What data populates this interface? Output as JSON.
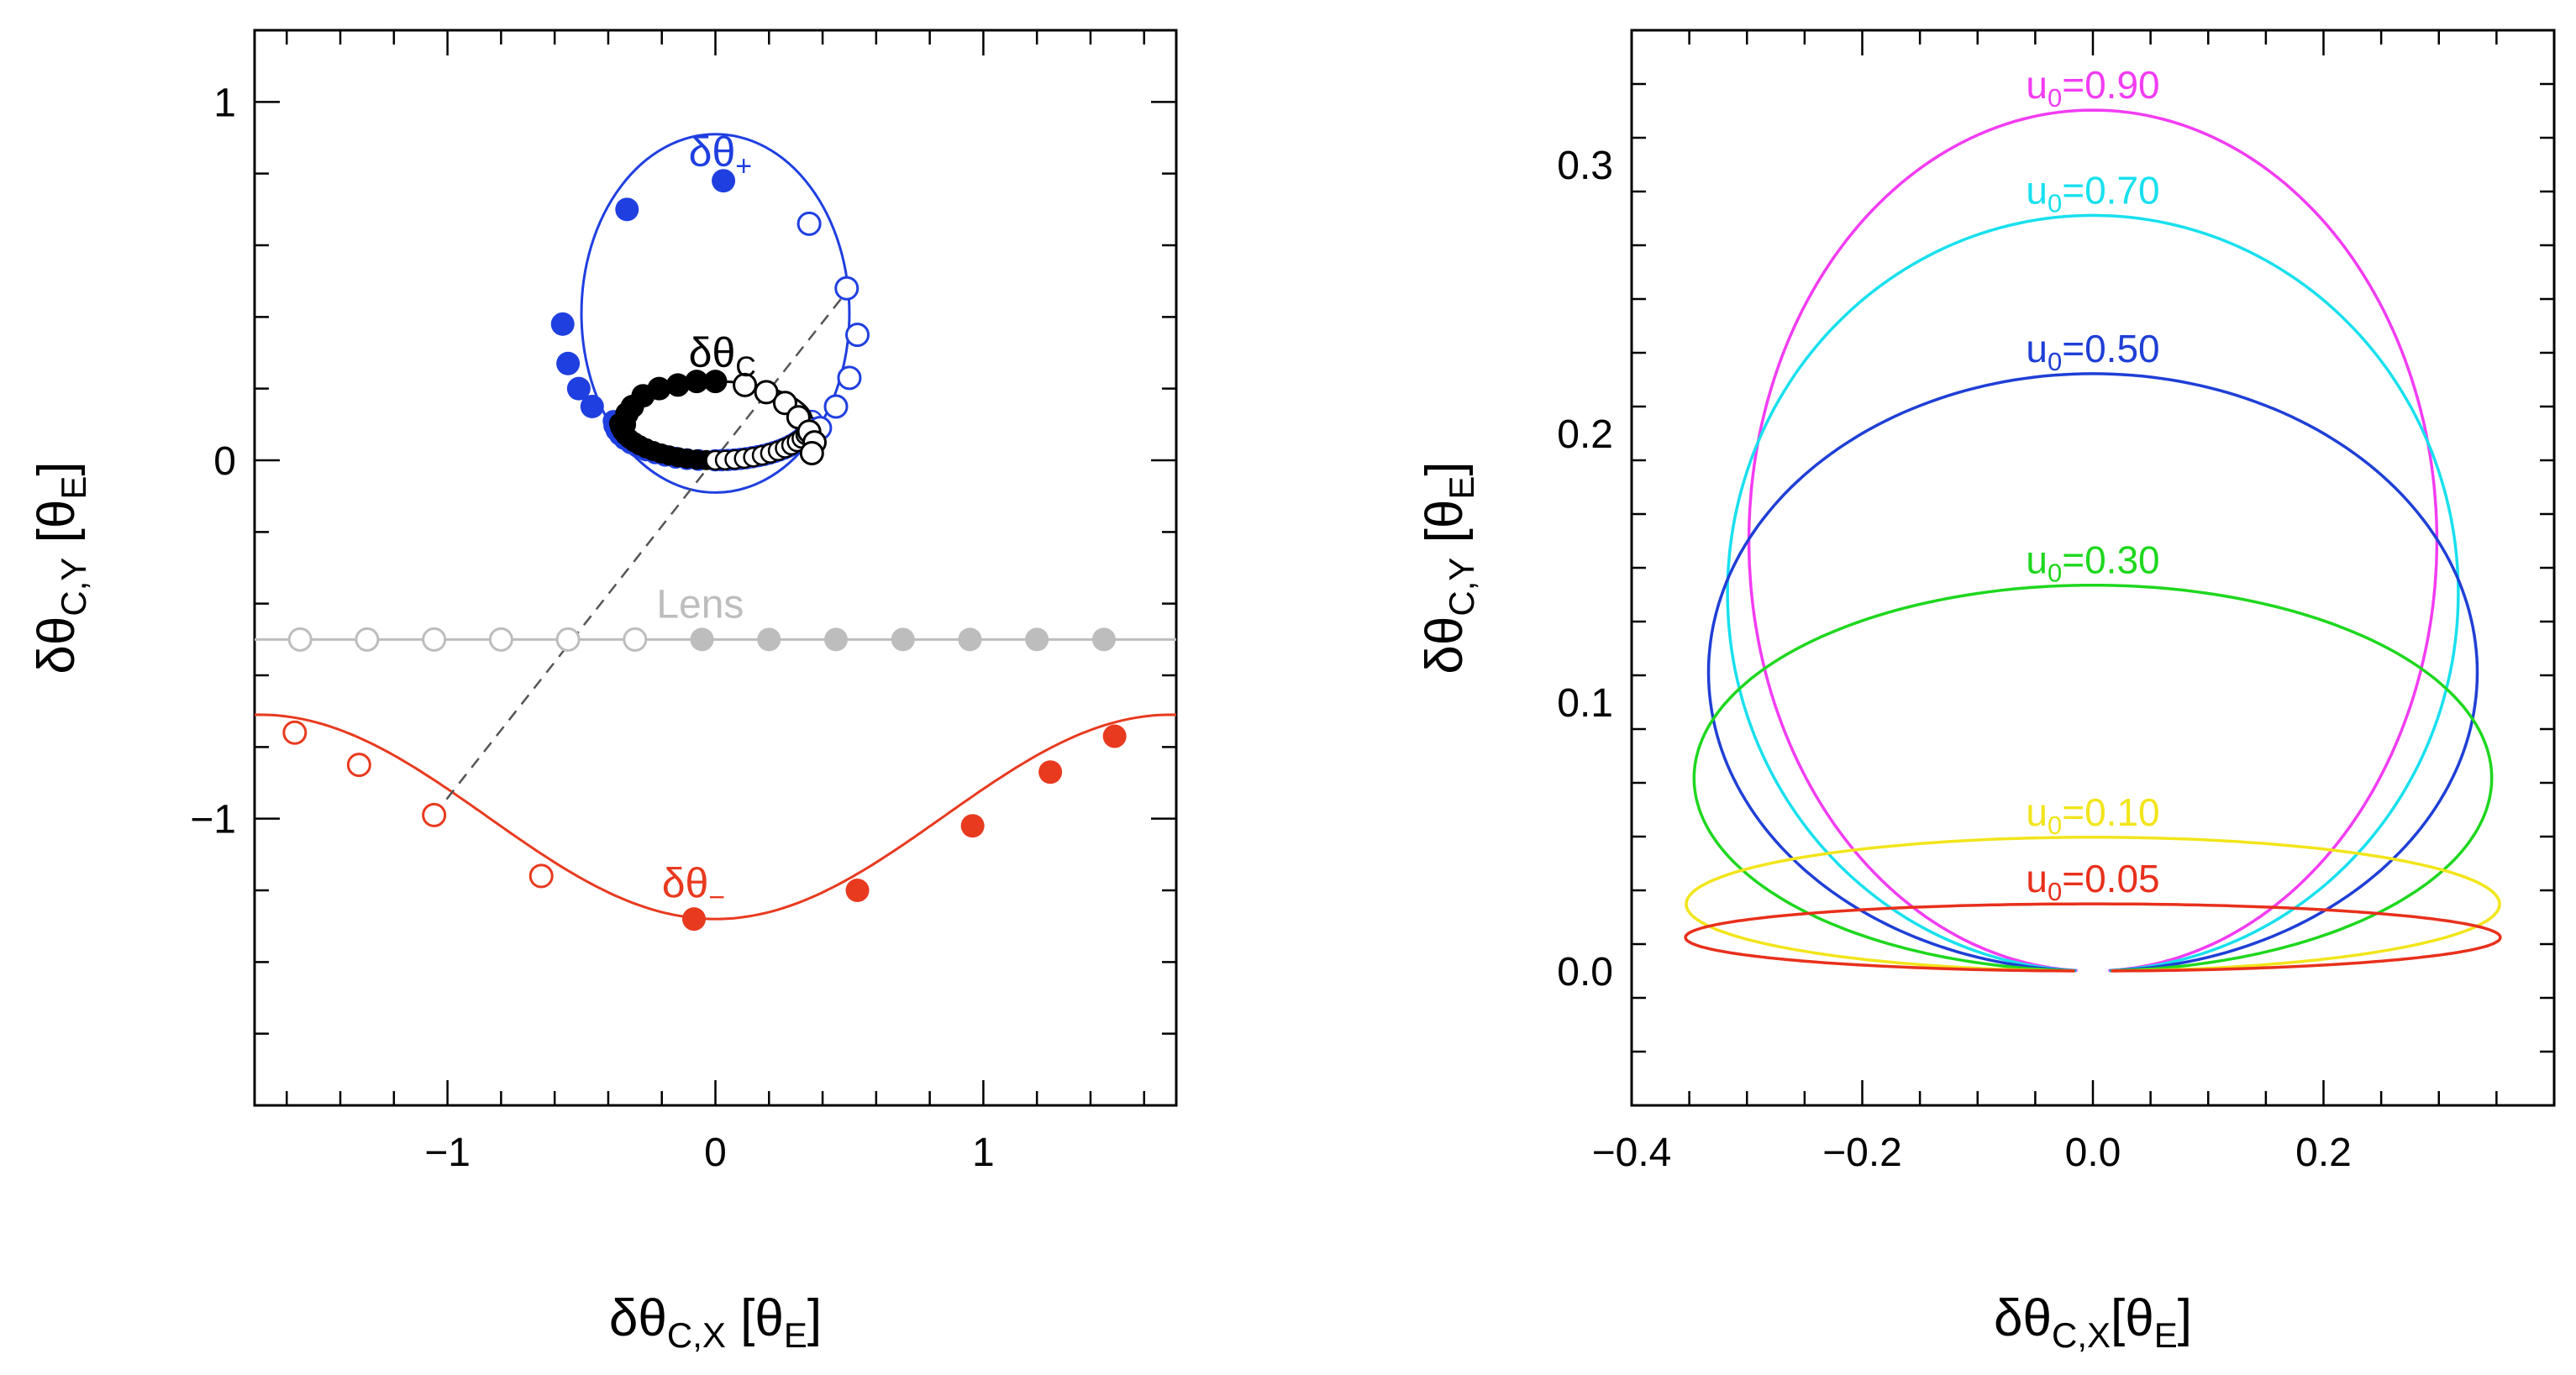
{
  "chart_data": [
    {
      "type": "line",
      "panel": "left",
      "title": "",
      "xlabel": "δθc,x [θE]",
      "ylabel": "δθc,y [θE]",
      "xlim": [
        -1.72,
        1.72
      ],
      "ylim": [
        -1.8,
        1.2
      ],
      "x_ticks": [
        -1,
        0,
        1
      ],
      "y_ticks": [
        1,
        0,
        -1
      ],
      "x_tick_labels": [
        "−1",
        "0",
        "1"
      ],
      "y_tick_labels": [
        "1",
        "0",
        "−1"
      ],
      "grid": false,
      "labels": {
        "plus": {
          "main": "δθ",
          "sub": "+"
        },
        "centroid": {
          "main": "δθ",
          "sub": "C"
        },
        "minus": {
          "main": "δθ",
          "sub": "−"
        },
        "lens": "Lens"
      },
      "series": [
        {
          "name": "δθ+",
          "color": "#1f3fe0",
          "curve": {
            "cx": 0.0,
            "cy": 0.41,
            "r": 0.5
          },
          "points_filled": [
            [
              -0.57,
              0.38
            ],
            [
              -0.55,
              0.27
            ],
            [
              -0.51,
              0.2
            ],
            [
              -0.46,
              0.15
            ],
            [
              -0.33,
              0.7
            ],
            [
              0.03,
              0.78
            ]
          ],
          "points_open": [
            [
              0.35,
              0.66
            ],
            [
              0.49,
              0.48
            ],
            [
              0.53,
              0.35
            ],
            [
              0.5,
              0.23
            ],
            [
              0.45,
              0.15
            ],
            [
              0.39,
              0.09
            ]
          ]
        },
        {
          "name": "δθC",
          "color": "#000000",
          "points_filled": [
            [
              -0.34,
              0.1
            ],
            [
              -0.33,
              0.13
            ],
            [
              -0.31,
              0.15
            ],
            [
              -0.27,
              0.18
            ],
            [
              -0.21,
              0.2
            ],
            [
              -0.14,
              0.21
            ],
            [
              -0.07,
              0.22
            ],
            [
              0.0,
              0.22
            ]
          ],
          "points_open": [
            [
              0.11,
              0.21
            ],
            [
              0.19,
              0.19
            ],
            [
              0.26,
              0.16
            ],
            [
              0.31,
              0.12
            ],
            [
              0.35,
              0.08
            ],
            [
              0.37,
              0.05
            ],
            [
              0.36,
              0.02
            ]
          ]
        },
        {
          "name": "Lens",
          "color": "#bdbdbd",
          "y": -0.5,
          "points_open": [
            -1.55,
            -1.3,
            -1.05,
            -0.8,
            -0.55,
            -0.3
          ],
          "points_filled": [
            -0.05,
            0.2,
            0.45,
            0.7,
            0.95,
            1.2,
            1.45
          ]
        },
        {
          "name": "δθ−",
          "color": "#e83a1f",
          "points_open": [
            [
              -1.57,
              -0.76
            ],
            [
              -1.33,
              -0.85
            ],
            [
              -1.05,
              -0.99
            ],
            [
              -0.65,
              -1.16
            ]
          ],
          "points_filled": [
            [
              -0.08,
              -1.28
            ],
            [
              0.53,
              -1.2
            ],
            [
              0.96,
              -1.02
            ],
            [
              1.25,
              -0.87
            ],
            [
              1.49,
              -0.77
            ]
          ]
        }
      ],
      "dashed_line": {
        "from": [
          -1.05,
          -0.99
        ],
        "to": [
          0.5,
          0.48
        ]
      }
    },
    {
      "type": "line",
      "panel": "right",
      "title": "",
      "xlabel": "δθc,x[θE]",
      "ylabel": "δθc,y [θE]",
      "xlim": [
        -0.4,
        0.4
      ],
      "ylim": [
        -0.05,
        0.35
      ],
      "x_ticks": [
        -0.4,
        -0.2,
        0.0,
        0.2
      ],
      "y_ticks": [
        0.3,
        0.2,
        0.1,
        0.0
      ],
      "x_tick_labels": [
        "−0.4",
        "−0.2",
        "0.0",
        "0.2"
      ],
      "y_tick_labels": [
        "0.3",
        "0.2",
        "0.1",
        "0.0"
      ],
      "grid": false,
      "series": [
        {
          "name": "u0=0.90",
          "label_main": "u",
          "label_sub": "0",
          "label_value": "=0.90",
          "color": "#f23cf2",
          "u0": 0.9
        },
        {
          "name": "u0=0.70",
          "label_main": "u",
          "label_sub": "0",
          "label_value": "=0.70",
          "color": "#18e0ee",
          "u0": 0.7
        },
        {
          "name": "u0=0.50",
          "label_main": "u",
          "label_sub": "0",
          "label_value": "=0.50",
          "color": "#1f3fd6",
          "u0": 0.5
        },
        {
          "name": "u0=0.30",
          "label_main": "u",
          "label_sub": "0",
          "label_value": "=0.30",
          "color": "#1ed71e",
          "u0": 0.3
        },
        {
          "name": "u0=0.10",
          "label_main": "u",
          "label_sub": "0",
          "label_value": "=0.10",
          "color": "#f2e51a",
          "u0": 0.1
        },
        {
          "name": "u0=0.05",
          "label_main": "u",
          "label_sub": "0",
          "label_value": "=0.05",
          "color": "#e8301c",
          "u0": 0.05
        }
      ]
    }
  ]
}
